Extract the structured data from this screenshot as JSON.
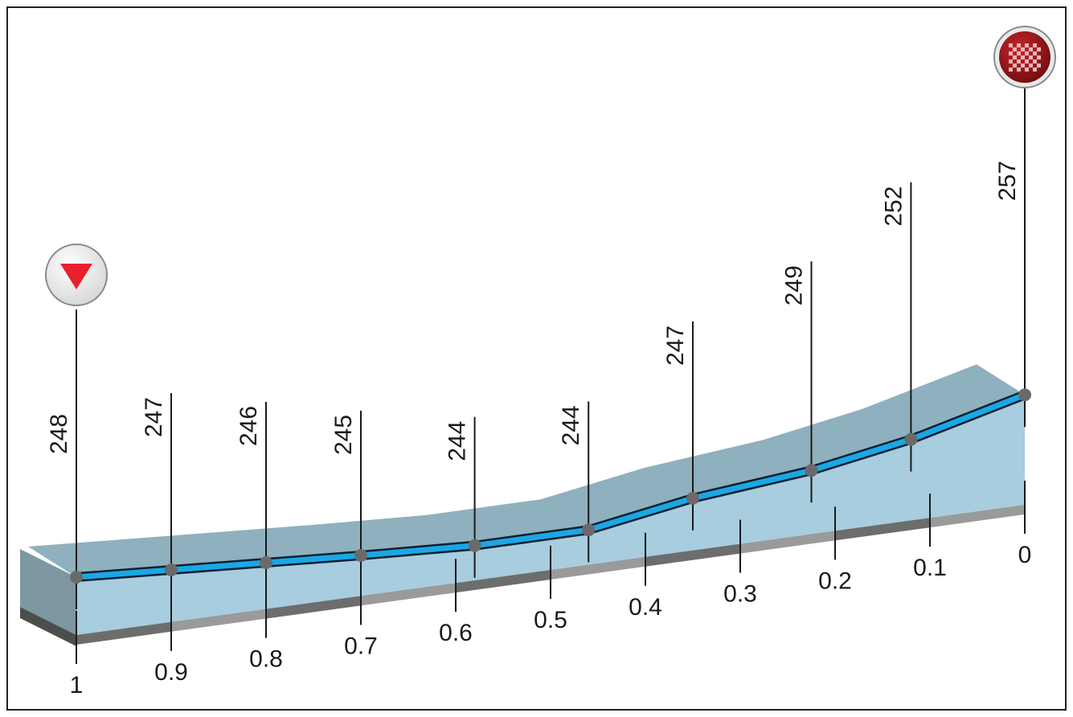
{
  "chart_data": {
    "type": "area",
    "title": "",
    "xlabel": "",
    "ylabel": "",
    "x_direction": "descending",
    "xlim": [
      1,
      0
    ],
    "distance_ticks": [
      "1",
      "0.9",
      "0.8",
      "0.7",
      "0.6",
      "0.5",
      "0.4",
      "0.3",
      "0.2",
      "0.1",
      "0"
    ],
    "series": [
      {
        "points": [
          {
            "x": 1.0,
            "elevation": 248
          },
          {
            "x": 0.9,
            "elevation": 247
          },
          {
            "x": 0.8,
            "elevation": 246
          },
          {
            "x": 0.7,
            "elevation": 245
          },
          {
            "x": 0.58,
            "elevation": 244
          },
          {
            "x": 0.46,
            "elevation": 244
          },
          {
            "x": 0.35,
            "elevation": 247
          },
          {
            "x": 0.225,
            "elevation": 249
          },
          {
            "x": 0.12,
            "elevation": 252
          },
          {
            "x": 0.0,
            "elevation": 257
          }
        ]
      }
    ],
    "markers": {
      "start": {
        "icon": "start-triangle-icon",
        "color": "#e8202a"
      },
      "finish": {
        "icon": "checkered-flag-icon",
        "color": "#a3171c"
      }
    },
    "colors": {
      "profile_line": "#1aa7e6",
      "profile_fill": "#a7cddf",
      "top_face": "#8fb0be",
      "point": "#6a6a6a"
    }
  }
}
